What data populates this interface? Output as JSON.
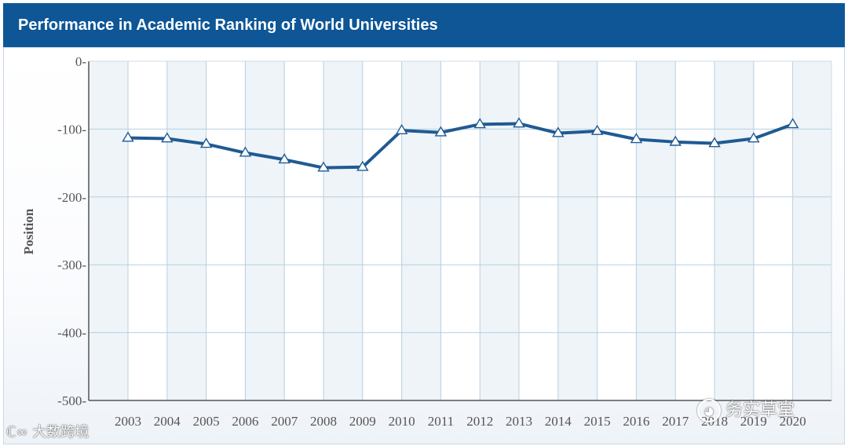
{
  "header": {
    "title": "Performance in Academic Ranking of World Universities"
  },
  "chart_data": {
    "type": "line",
    "ylabel": "Position",
    "xlabel": "",
    "x": [
      "2003",
      "2004",
      "2005",
      "2006",
      "2007",
      "2008",
      "2009",
      "2010",
      "2011",
      "2012",
      "2013",
      "2014",
      "2015",
      "2016",
      "2017",
      "2018",
      "2019",
      "2020"
    ],
    "series": [
      {
        "values": [
          -113,
          -114,
          -122,
          -135,
          -145,
          -157,
          -156,
          -102,
          -105,
          -93,
          -92,
          -106,
          -103,
          -115,
          -119,
          -121,
          -114,
          -93
        ]
      }
    ],
    "ylim": [
      -500,
      0
    ],
    "yticks": [
      0,
      -100,
      -200,
      -300,
      -400,
      -500
    ],
    "ytick_labels": [
      "0-",
      "-100-",
      "-200-",
      "-300-",
      "-400-",
      "-500-"
    ],
    "grid": true,
    "line_color": "#1f5a93",
    "marker": "triangle-up"
  },
  "watermarks": {
    "left": "大数跨境",
    "right": "务实草堂"
  },
  "colors": {
    "header_bg": "#0e5696",
    "band_a": "#eef4f8",
    "band_b": "#ffffff",
    "grid": "#b9cfe0",
    "axis": "#555555"
  }
}
